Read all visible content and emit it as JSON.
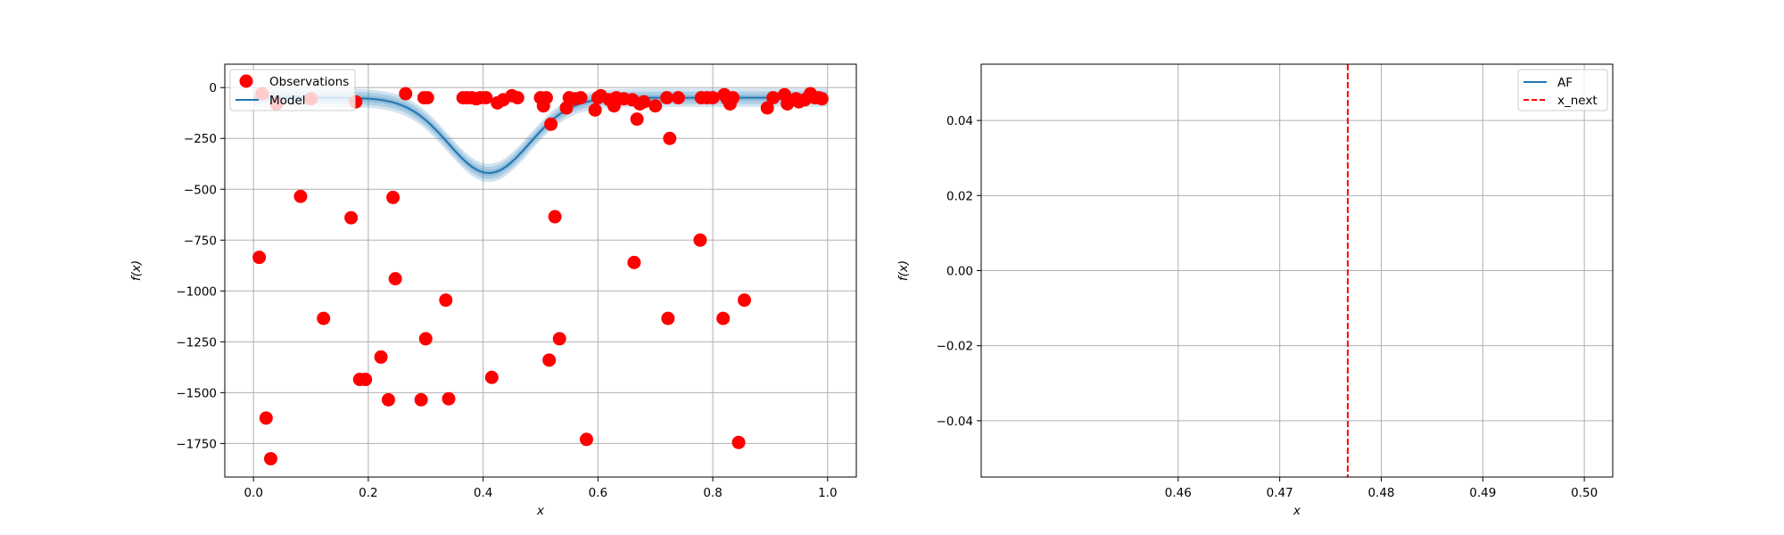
{
  "chart_data": [
    {
      "type": "scatter",
      "title": "",
      "xlabel": "x",
      "ylabel": "f(x)",
      "xlim": [
        -0.05,
        1.05
      ],
      "ylim": [
        -1915,
        115
      ],
      "xticks": [
        0.0,
        0.2,
        0.4,
        0.6,
        0.8,
        1.0
      ],
      "xtick_labels": [
        "0.0",
        "0.2",
        "0.4",
        "0.6",
        "0.8",
        "1.0"
      ],
      "yticks": [
        0,
        -250,
        -500,
        -750,
        -1000,
        -1250,
        -1500,
        -1750
      ],
      "ytick_labels": [
        "0",
        "−250",
        "−500",
        "−750",
        "−1000",
        "−1250",
        "−1500",
        "−1750"
      ],
      "grid": true,
      "legend_position": "top-left",
      "legend": [
        "Observations",
        "Model"
      ],
      "colors": {
        "observations": "#ff0000",
        "model": "#1f77b4"
      },
      "series": [
        {
          "name": "Observations",
          "kind": "scatter",
          "points": [
            [
              0.01,
              -835
            ],
            [
              0.015,
              -30
            ],
            [
              0.022,
              -1625
            ],
            [
              0.03,
              -1825
            ],
            [
              0.04,
              -80
            ],
            [
              0.082,
              -535
            ],
            [
              0.1,
              -55
            ],
            [
              0.122,
              -1135
            ],
            [
              0.17,
              -640
            ],
            [
              0.178,
              -70
            ],
            [
              0.185,
              -1435
            ],
            [
              0.195,
              -1435
            ],
            [
              0.222,
              -1325
            ],
            [
              0.235,
              -1535
            ],
            [
              0.243,
              -540
            ],
            [
              0.247,
              -940
            ],
            [
              0.265,
              -30
            ],
            [
              0.292,
              -1535
            ],
            [
              0.297,
              -50
            ],
            [
              0.3,
              -1235
            ],
            [
              0.303,
              -50
            ],
            [
              0.335,
              -1045
            ],
            [
              0.34,
              -1530
            ],
            [
              0.365,
              -50
            ],
            [
              0.372,
              -50
            ],
            [
              0.38,
              -50
            ],
            [
              0.388,
              -55
            ],
            [
              0.395,
              -50
            ],
            [
              0.405,
              -50
            ],
            [
              0.415,
              -1425
            ],
            [
              0.425,
              -75
            ],
            [
              0.435,
              -60
            ],
            [
              0.45,
              -40
            ],
            [
              0.46,
              -50
            ],
            [
              0.5,
              -50
            ],
            [
              0.505,
              -90
            ],
            [
              0.51,
              -50
            ],
            [
              0.515,
              -1340
            ],
            [
              0.518,
              -180
            ],
            [
              0.525,
              -635
            ],
            [
              0.533,
              -1235
            ],
            [
              0.545,
              -100
            ],
            [
              0.55,
              -50
            ],
            [
              0.56,
              -55
            ],
            [
              0.57,
              -50
            ],
            [
              0.58,
              -1730
            ],
            [
              0.595,
              -110
            ],
            [
              0.6,
              -50
            ],
            [
              0.605,
              -40
            ],
            [
              0.62,
              -60
            ],
            [
              0.628,
              -90
            ],
            [
              0.632,
              -50
            ],
            [
              0.645,
              -55
            ],
            [
              0.66,
              -60
            ],
            [
              0.663,
              -860
            ],
            [
              0.668,
              -155
            ],
            [
              0.673,
              -80
            ],
            [
              0.68,
              -70
            ],
            [
              0.7,
              -90
            ],
            [
              0.72,
              -50
            ],
            [
              0.722,
              -1135
            ],
            [
              0.725,
              -250
            ],
            [
              0.74,
              -50
            ],
            [
              0.778,
              -750
            ],
            [
              0.78,
              -50
            ],
            [
              0.79,
              -50
            ],
            [
              0.8,
              -50
            ],
            [
              0.818,
              -1135
            ],
            [
              0.82,
              -35
            ],
            [
              0.825,
              -55
            ],
            [
              0.83,
              -80
            ],
            [
              0.835,
              -50
            ],
            [
              0.845,
              -1745
            ],
            [
              0.855,
              -1045
            ],
            [
              0.895,
              -100
            ],
            [
              0.905,
              -50
            ],
            [
              0.925,
              -35
            ],
            [
              0.93,
              -80
            ],
            [
              0.945,
              -55
            ],
            [
              0.95,
              -70
            ],
            [
              0.96,
              -60
            ],
            [
              0.97,
              -30
            ],
            [
              0.978,
              -50
            ],
            [
              0.985,
              -50
            ],
            [
              0.99,
              -55
            ]
          ]
        },
        {
          "name": "Model",
          "kind": "line",
          "mean_function": {
            "base": -50,
            "amplitude": -370,
            "center": 0.41,
            "width": 0.1,
            "tail_start": 0.41,
            "tail_slope": 40
          },
          "uncertainty_bands": [
            45,
            30,
            15
          ]
        }
      ]
    },
    {
      "type": "line",
      "title": "",
      "xlabel": "x",
      "ylabel": "f(x)",
      "xlim": [
        0.4406,
        0.5028
      ],
      "ylim": [
        -0.055,
        0.055
      ],
      "xticks": [
        0.46,
        0.47,
        0.48,
        0.49,
        0.5
      ],
      "xtick_labels": [
        "0.46",
        "0.47",
        "0.48",
        "0.49",
        "0.50"
      ],
      "yticks": [
        0.04,
        0.02,
        0.0,
        -0.02,
        -0.04
      ],
      "ytick_labels": [
        "0.04",
        "0.02",
        "0.00",
        "−0.02",
        "−0.04"
      ],
      "grid": true,
      "legend_position": "top-right",
      "legend": [
        "AF",
        "x_next"
      ],
      "colors": {
        "af": "#1f77b4",
        "x_next": "#ff0000"
      },
      "series": [
        {
          "name": "AF",
          "kind": "line",
          "points": []
        },
        {
          "name": "x_next",
          "kind": "vline",
          "x": 0.4767
        }
      ]
    }
  ]
}
